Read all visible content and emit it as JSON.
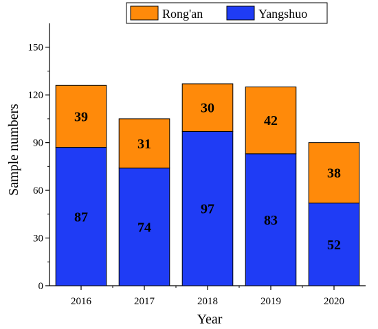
{
  "chart_data": {
    "type": "bar",
    "stacked": true,
    "categories": [
      "2016",
      "2017",
      "2018",
      "2019",
      "2020"
    ],
    "series": [
      {
        "name": "Yangshuo",
        "values": [
          87,
          74,
          97,
          83,
          52
        ],
        "color": "#1f3cf5"
      },
      {
        "name": "Rong'an",
        "values": [
          39,
          31,
          30,
          42,
          38
        ],
        "color": "#ff8a0a"
      }
    ],
    "xlabel": "Year",
    "ylabel": "Sample numbers",
    "ylim": [
      0,
      165
    ],
    "yticks": [
      0,
      30,
      60,
      90,
      120,
      150
    ],
    "grid": false,
    "legend": {
      "position": "top",
      "entries": [
        "Rong'an",
        "Yangshuo"
      ]
    },
    "data_labels": true
  }
}
